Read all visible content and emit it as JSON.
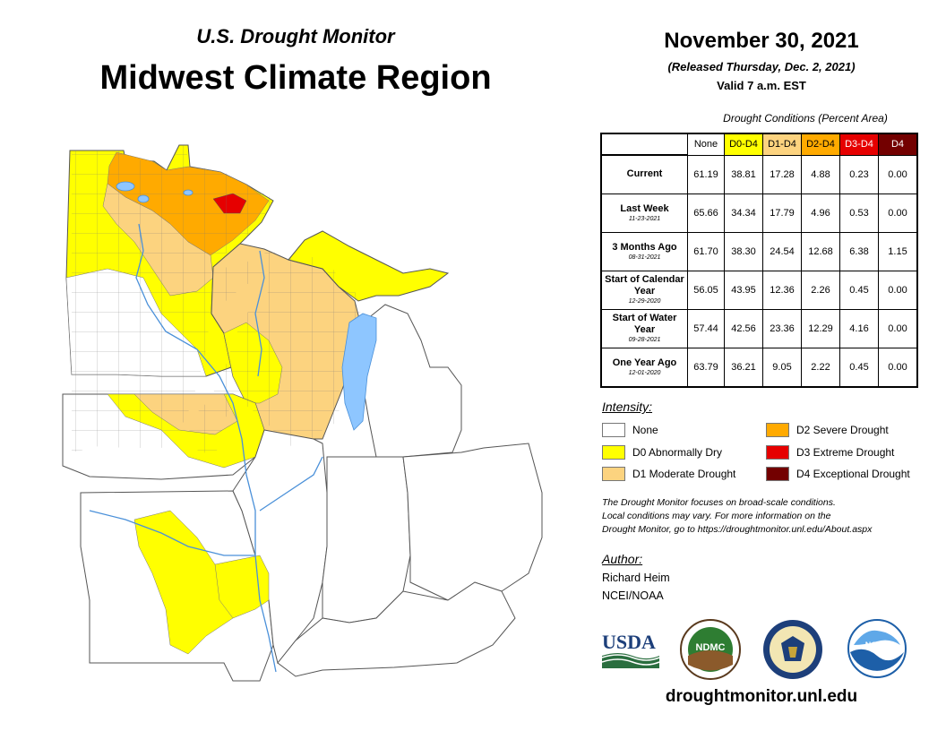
{
  "header": {
    "supertitle": "U.S. Drought Monitor",
    "title": "Midwest Climate Region",
    "date": "November 30, 2021",
    "released": "(Released Thursday, Dec. 2, 2021)",
    "valid": "Valid 7 a.m. EST"
  },
  "table": {
    "caption": "Drought Conditions (Percent Area)",
    "columns": [
      "None",
      "D0-D4",
      "D1-D4",
      "D2-D4",
      "D3-D4",
      "D4"
    ],
    "column_colors": [
      "#ffffff",
      "#ffff00",
      "#fcd37f",
      "#ffaa00",
      "#e60000",
      "#730000"
    ],
    "rows": [
      {
        "label": "Current",
        "date": "",
        "values": [
          "61.19",
          "38.81",
          "17.28",
          "4.88",
          "0.23",
          "0.00"
        ]
      },
      {
        "label": "Last Week",
        "date": "11-23-2021",
        "values": [
          "65.66",
          "34.34",
          "17.79",
          "4.96",
          "0.53",
          "0.00"
        ]
      },
      {
        "label": "3 Months Ago",
        "date": "08-31-2021",
        "values": [
          "61.70",
          "38.30",
          "24.54",
          "12.68",
          "6.38",
          "1.15"
        ]
      },
      {
        "label": "Start of Calendar Year",
        "date": "12-29-2020",
        "values": [
          "56.05",
          "43.95",
          "12.36",
          "2.26",
          "0.45",
          "0.00"
        ]
      },
      {
        "label": "Start of Water Year",
        "date": "09-28-2021",
        "values": [
          "57.44",
          "42.56",
          "23.36",
          "12.29",
          "4.16",
          "0.00"
        ]
      },
      {
        "label": "One Year Ago",
        "date": "12-01-2020",
        "values": [
          "63.79",
          "36.21",
          "9.05",
          "2.22",
          "0.45",
          "0.00"
        ]
      }
    ]
  },
  "legend": {
    "heading": "Intensity:",
    "items": [
      {
        "label": "None",
        "color": "#ffffff"
      },
      {
        "label": "D0 Abnormally Dry",
        "color": "#ffff00"
      },
      {
        "label": "D1 Moderate Drought",
        "color": "#fcd37f"
      },
      {
        "label": "D2 Severe Drought",
        "color": "#ffaa00"
      },
      {
        "label": "D3 Extreme Drought",
        "color": "#e60000"
      },
      {
        "label": "D4 Exceptional Drought",
        "color": "#730000"
      }
    ]
  },
  "note": {
    "line1": "The Drought Monitor focuses on broad-scale conditions.",
    "line2": "Local conditions may vary. For more information on the",
    "line3": "Drought Monitor, go to https://droughtmonitor.unl.edu/About.aspx"
  },
  "author": {
    "heading": "Author:",
    "name": "Richard Heim",
    "org": "NCEI/NOAA"
  },
  "logos": {
    "usda": "USDA",
    "ndmc": "NDMC",
    "noaa": "NOAA"
  },
  "footer": {
    "url": "droughtmonitor.unl.edu"
  }
}
